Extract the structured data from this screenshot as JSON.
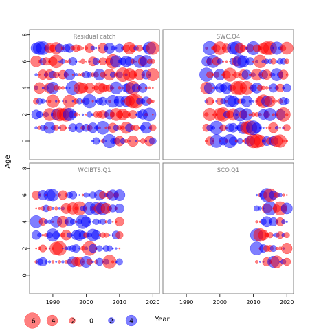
{
  "chart_data": {
    "type": "scatter",
    "subtype": "bubble-residuals",
    "xlabel": "Year",
    "ylabel": "Age",
    "xlim": [
      1983,
      2022
    ],
    "ylim": [
      -1.4,
      8.4
    ],
    "x_ticks": [
      1990,
      2000,
      2010,
      2020
    ],
    "y_ticks": [
      0,
      2,
      4,
      6,
      8
    ],
    "layout": "2x2",
    "colors": {
      "positive": "#0000ff",
      "negative": "#ff0000",
      "frame": "#808080",
      "title": "#808080"
    },
    "legend": {
      "placement": "bottom-left",
      "values": [
        -6,
        -4,
        -2,
        0,
        2,
        4
      ],
      "labels": [
        "-6",
        "-4",
        "-2",
        "0",
        "2",
        "4"
      ]
    },
    "panels": [
      {
        "title": "Residual catch",
        "years": [
          1985,
          2020
        ],
        "ages": [
          0,
          7
        ],
        "seed": 7,
        "missing": [
          {
            "age": 0,
            "from": 1985,
            "to": 2001
          }
        ]
      },
      {
        "title": "SWC.Q4",
        "years": [
          1996,
          2020
        ],
        "ages": [
          0,
          7
        ],
        "seed": 13,
        "missing": []
      },
      {
        "title": "WCIBTS.Q1",
        "years": [
          1985,
          2010
        ],
        "ages": [
          1,
          6
        ],
        "seed": 23,
        "missing": []
      },
      {
        "title": "SCO.Q1",
        "years": [
          2011,
          2020
        ],
        "ages": [
          1,
          6
        ],
        "seed": 31,
        "missing": []
      }
    ]
  }
}
